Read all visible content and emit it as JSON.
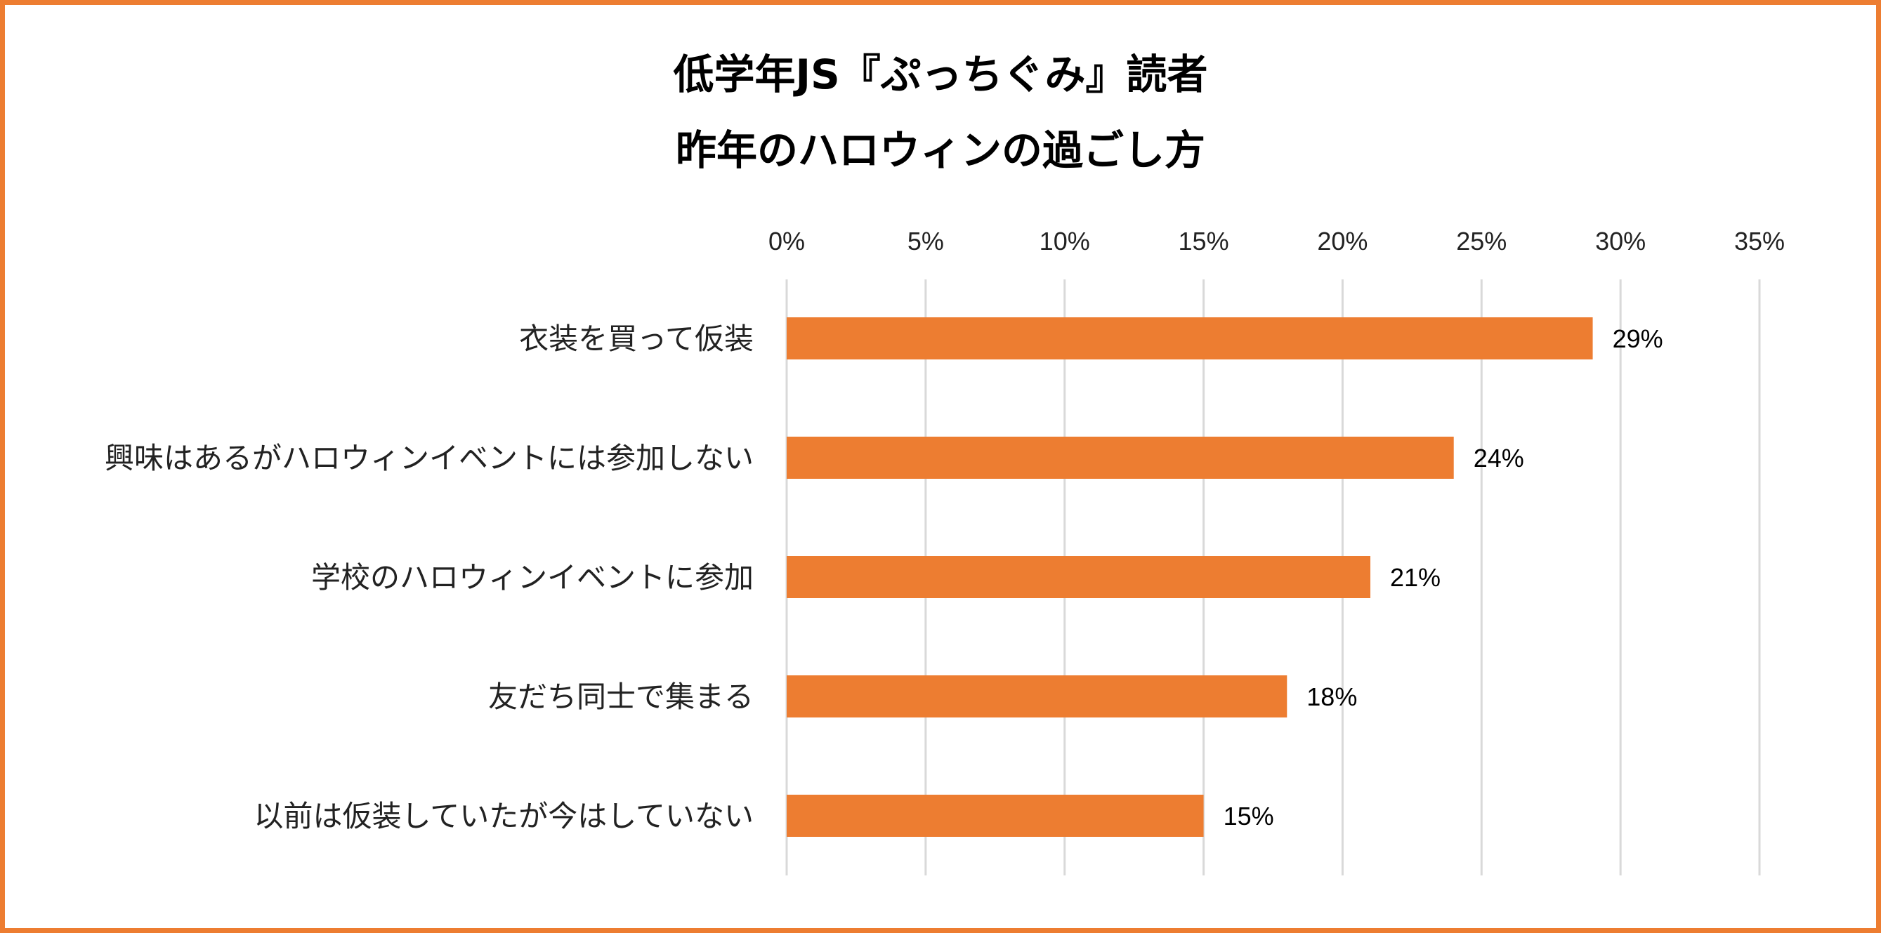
{
  "chart_data": {
    "type": "bar",
    "orientation": "horizontal",
    "title_lines": [
      "低学年JS『ぷっちぐみ』読者",
      "昨年のハロウィンの過ごし方"
    ],
    "categories": [
      "衣装を買って仮装",
      "興味はあるがハロウィンイベントには参加しない",
      "学校のハロウィンイベントに参加",
      "友だち同士で集まる",
      "以前は仮装していたが今はしていない"
    ],
    "values": [
      29,
      24,
      21,
      18,
      15
    ],
    "data_labels": [
      "29%",
      "24%",
      "21%",
      "18%",
      "15%"
    ],
    "xlim": [
      0,
      35
    ],
    "tick_values": [
      0,
      5,
      10,
      15,
      20,
      25,
      30,
      35
    ],
    "tick_labels": [
      "0%",
      "5%",
      "10%",
      "15%",
      "20%",
      "25%",
      "30%",
      "35%"
    ],
    "x_axis_position": "top",
    "grid": true,
    "legend": false,
    "bar_color": "#ED7D31",
    "border_color": "#ED7D31",
    "grid_color": "#D9D9D9"
  }
}
